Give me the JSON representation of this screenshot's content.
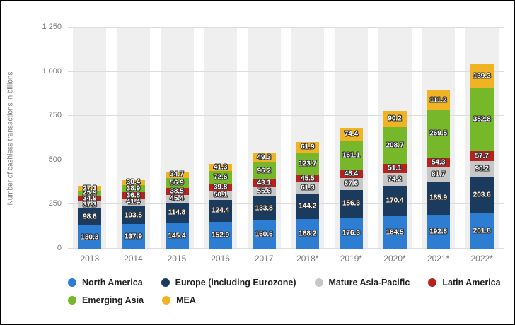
{
  "chart_data": {
    "type": "bar",
    "stacked": true,
    "title": "",
    "xlabel": "",
    "ylabel": "Number of cashless transactions in billions",
    "ylim": [
      0,
      1250
    ],
    "yticks": [
      0,
      250,
      500,
      750,
      1000,
      1250
    ],
    "ytick_labels": [
      "0",
      "250",
      "500",
      "750",
      "1 000",
      "1 250"
    ],
    "grid": true,
    "legend_position": "bottom",
    "legend_rows": [
      [
        0,
        1,
        2,
        3
      ],
      [
        4,
        5
      ]
    ],
    "categories": [
      "2013",
      "2014",
      "2015",
      "2016",
      "2017",
      "2018*",
      "2019*",
      "2020*",
      "2021*",
      "2022*"
    ],
    "series": [
      {
        "name": "North America",
        "color": "#2d7dd2",
        "values": [
          130.3,
          137.9,
          145.4,
          152.9,
          160.6,
          168.2,
          176.3,
          184.5,
          192.8,
          201.8
        ]
      },
      {
        "name": "Europe (including Eurozone)",
        "color": "#1b3b5e",
        "values": [
          98.6,
          103.5,
          114.8,
          124.4,
          133.8,
          144.2,
          156.3,
          170.4,
          185.9,
          203.6
        ]
      },
      {
        "name": "Mature Asia-Pacific",
        "color": "#c7c7c7",
        "values": [
          37.3,
          41.4,
          45.4,
          50.1,
          55.6,
          61.3,
          67.6,
          74.2,
          81.7,
          90.2
        ]
      },
      {
        "name": "Latin America",
        "color": "#b6231f",
        "values": [
          34.9,
          36.8,
          38.5,
          39.8,
          43.1,
          45.5,
          48.4,
          51.1,
          54.3,
          57.7
        ]
      },
      {
        "name": "Emerging Asia",
        "color": "#76b82a",
        "values": [
          25.9,
          38.9,
          56.9,
          72.6,
          96.2,
          123.7,
          161.1,
          208.7,
          269.5,
          352.8
        ]
      },
      {
        "name": "MEA",
        "color": "#f0b323",
        "values": [
          27.3,
          30.4,
          34.7,
          41.3,
          49.3,
          61.9,
          74.4,
          90.2,
          111.2,
          139.3
        ]
      }
    ]
  }
}
